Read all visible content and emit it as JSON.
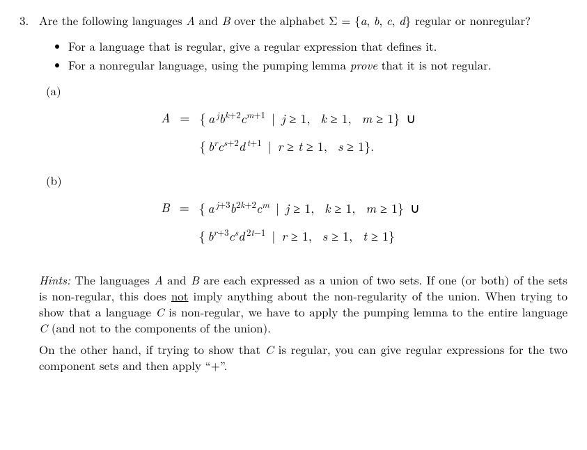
{
  "problem_number": "3.",
  "intro_pre": "Are the following languages ",
  "A": "A",
  "intro_mid1": " and ",
  "B": "B",
  "intro_mid2": " over the alphabet ",
  "sigma_expr": "Σ = {a, b, c, d}",
  "intro_post": " regular or nonregular?",
  "bullet1": "For a language that is regular, give a regular expression that defines it.",
  "bullet2_pre": "For a nonregular language, using the pumping lemma ",
  "bullet2_prove": "prove",
  "bullet2_post": " that it is not regular.",
  "part_a": "(a)",
  "part_b": "(b)",
  "eqA": {
    "lhs": "A",
    "eq": "="
  },
  "eqB": {
    "lhs": "B",
    "eq": "="
  },
  "hints_label": "Hints:",
  "hints_p1_1": " The languages ",
  "hints_p1_2": " and ",
  "hints_p1_3": " are each expressed as a union of two sets. If one (or both) of the sets is non-regular, this does ",
  "hints_not": "not",
  "hints_p1_4": " imply anything about the non-regularity of the union. When trying to show that a language ",
  "C": "C",
  "hints_p1_5": " is non-regular, we have to apply the pumping lemma to the entire language ",
  "hints_p1_6": " (and not to the components of the union).",
  "hints_p2_1": "On the other hand, if trying to show that ",
  "hints_p2_2": " is regular, you can give regular expressions for the two component sets and then apply “+”."
}
